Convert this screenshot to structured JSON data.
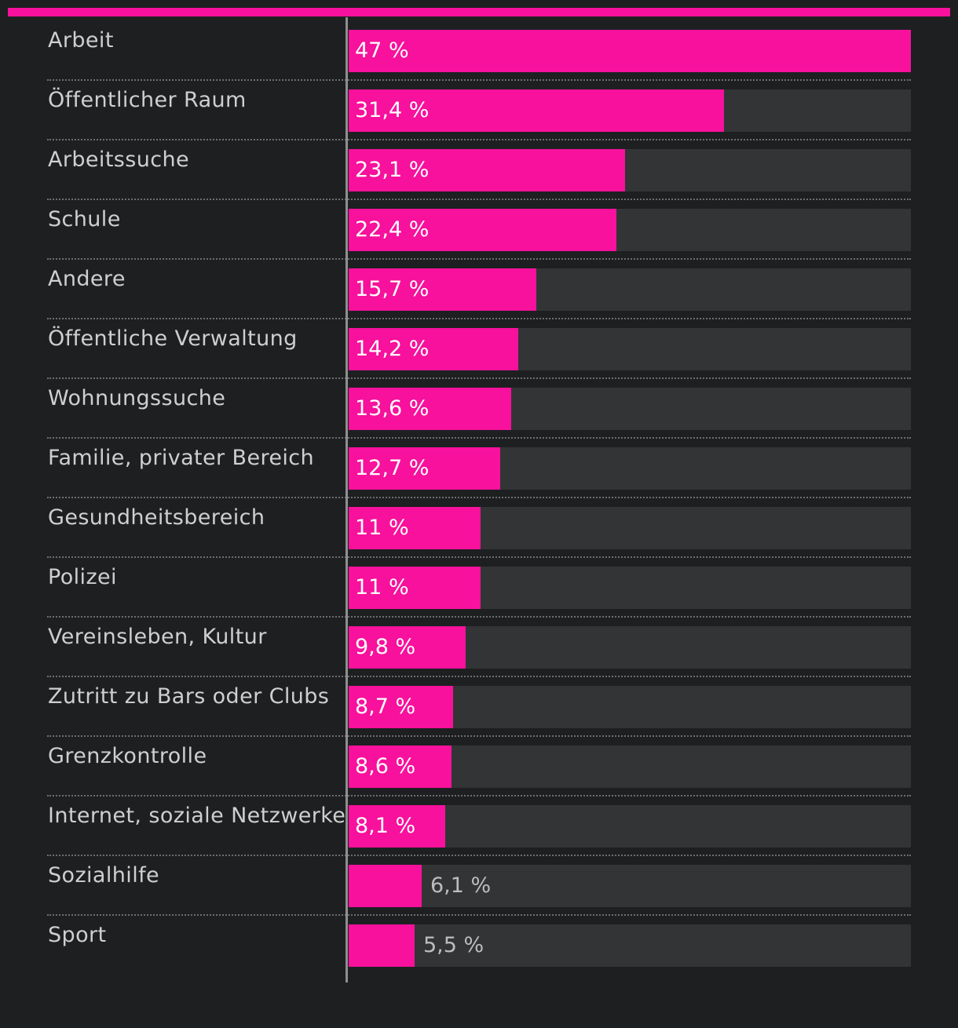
{
  "colors": {
    "background": "#1e1f21",
    "accent": "#f7119c",
    "track": "#333436"
  },
  "chart_data": {
    "type": "bar",
    "orientation": "horizontal",
    "categories": [
      "Arbeit",
      "Öffentlicher Raum",
      "Arbeitssuche",
      "Schule",
      "Andere",
      "Öffentliche Verwaltung",
      "Wohnungssuche",
      "Familie, privater Bereich",
      "Gesundheitsbereich",
      "Polizei",
      "Vereinsleben, Kultur",
      "Zutritt zu Bars oder Clubs",
      "Grenzkontrolle",
      "Internet, soziale Netzwerke",
      "Sozialhilfe",
      "Sport"
    ],
    "values": [
      47,
      31.4,
      23.1,
      22.4,
      15.7,
      14.2,
      13.6,
      12.7,
      11,
      11,
      9.8,
      8.7,
      8.6,
      8.1,
      6.1,
      5.5
    ],
    "value_labels": [
      "47 %",
      "31,4 %",
      "23,1 %",
      "22,4 %",
      "15,7 %",
      "14,2 %",
      "13,6 %",
      "12,7 %",
      "11 %",
      "11 %",
      "9,8 %",
      "8,7 %",
      "8,6 %",
      "8,1 %",
      "6,1 %",
      "5,5 %"
    ],
    "unit": "%",
    "xlim": [
      0,
      47
    ],
    "grid": false,
    "legend": "none"
  }
}
